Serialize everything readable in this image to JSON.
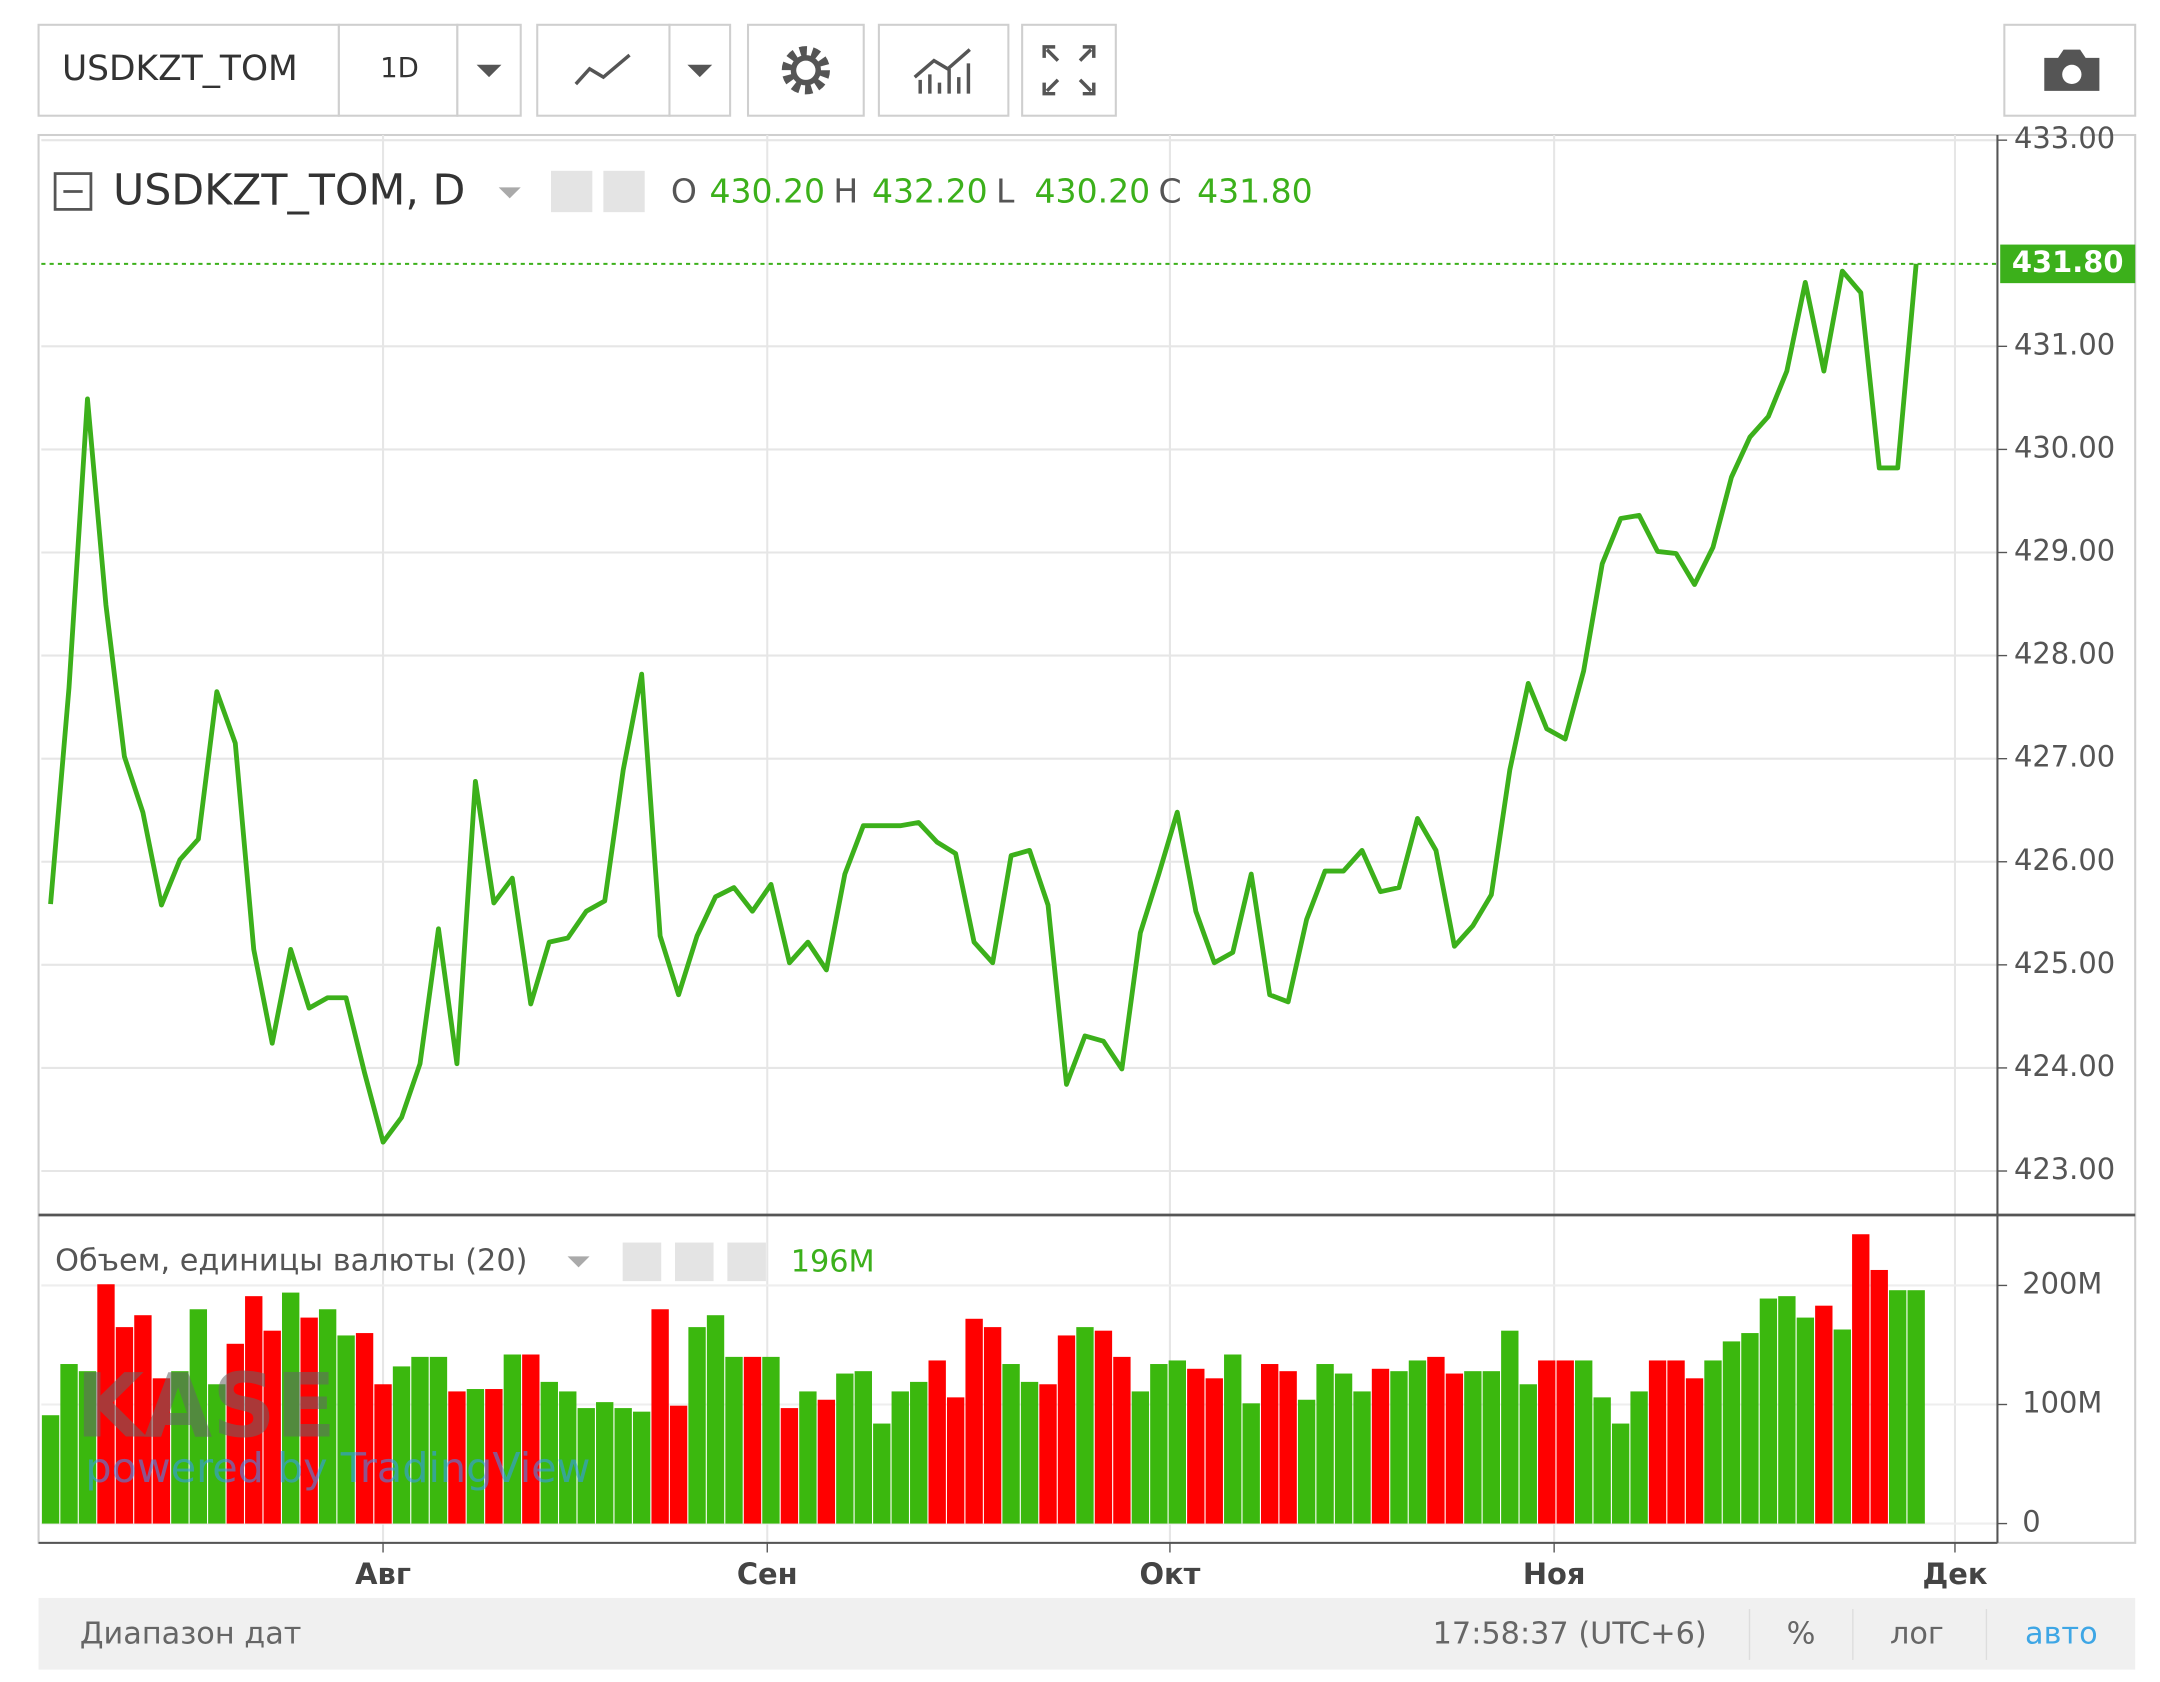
{
  "toolbar": {
    "symbol": "USDKZT_TOM",
    "interval": "1D"
  },
  "chart_data": {
    "type": "line",
    "title": "USDKZT_TOM, D",
    "ohlc": [
      {
        "key": "O",
        "value": "430.20"
      },
      {
        "key": "H",
        "value": "432.20"
      },
      {
        "key": "L",
        "value": "430.20"
      },
      {
        "key": "C",
        "value": "431.80"
      }
    ],
    "color": "#3cb01b",
    "last_label": "431.80",
    "grid": true,
    "values": [
      425.59,
      427.69,
      430.49,
      428.49,
      427.02,
      426.48,
      425.58,
      426.02,
      426.22,
      427.65,
      427.15,
      425.15,
      424.24,
      425.15,
      424.58,
      424.68,
      424.68,
      423.95,
      423.28,
      423.52,
      424.04,
      425.35,
      424.04,
      426.78,
      425.6,
      425.84,
      424.62,
      425.22,
      425.26,
      425.52,
      425.62,
      426.89,
      427.82,
      425.28,
      424.71,
      425.28,
      425.66,
      425.75,
      425.52,
      425.78,
      425.02,
      425.22,
      424.95,
      425.88,
      426.35,
      426.35,
      426.35,
      426.38,
      426.19,
      426.08,
      425.22,
      425.02,
      426.06,
      426.11,
      425.58,
      423.84,
      424.31,
      424.26,
      423.99,
      425.31,
      425.88,
      426.48,
      425.52,
      425.02,
      425.12,
      425.88,
      424.71,
      424.64,
      425.44,
      425.91,
      425.91,
      426.11,
      425.71,
      425.75,
      426.42,
      426.11,
      425.18,
      425.38,
      425.68,
      426.89,
      427.73,
      427.29,
      427.19,
      427.85,
      428.89,
      429.33,
      429.36,
      429.01,
      428.99,
      428.69,
      429.05,
      429.73,
      430.12,
      430.32,
      430.76,
      431.62,
      430.76,
      431.73,
      431.52,
      429.82,
      429.82,
      431.8
    ],
    "ylim": [
      422.6,
      433.05
    ],
    "yticks": [
      {
        "value": 423,
        "label": "423.00"
      },
      {
        "value": 424,
        "label": "424.00"
      },
      {
        "value": 425,
        "label": "425.00"
      },
      {
        "value": 426,
        "label": "426.00"
      },
      {
        "value": 427,
        "label": "427.00"
      },
      {
        "value": 428,
        "label": "428.00"
      },
      {
        "value": 429,
        "label": "429.00"
      },
      {
        "value": 430,
        "label": "430.00"
      },
      {
        "value": 431,
        "label": "431.00"
      },
      {
        "value": 433,
        "label": "433.00"
      }
    ],
    "xlim": [
      -0.5,
      105.4
    ],
    "xticks": [
      {
        "value": 18,
        "label": "Авг"
      },
      {
        "value": 38.8,
        "label": "Сен"
      },
      {
        "value": 60.6,
        "label": "Окт"
      },
      {
        "value": 81.4,
        "label": "Ноя"
      },
      {
        "value": 103.1,
        "label": "Дек"
      }
    ],
    "volume": {
      "title": "Объем, единицы валюты (20)",
      "last_label": "196M",
      "up_color": "#3bb80e",
      "down_color": "#ff0000",
      "values": [
        91,
        134,
        128,
        201,
        165,
        175,
        122,
        128,
        180,
        117,
        151,
        191,
        162,
        194,
        173,
        180,
        158,
        160,
        117,
        132,
        140,
        140,
        111,
        113,
        113,
        142,
        142,
        119,
        111,
        97,
        102,
        97,
        94,
        180,
        99,
        165,
        175,
        140,
        140,
        140,
        97,
        111,
        104,
        126,
        128,
        84,
        111,
        119,
        137,
        106,
        172,
        165,
        134,
        119,
        117,
        158,
        165,
        162,
        140,
        111,
        134,
        137,
        130,
        122,
        142,
        101,
        134,
        128,
        104,
        134,
        126,
        111,
        130,
        128,
        137,
        140,
        126,
        128,
        128,
        162,
        117,
        137,
        137,
        137,
        106,
        84,
        111,
        137,
        137,
        122,
        137,
        153,
        160,
        189,
        191,
        173,
        183,
        163,
        243,
        213,
        196,
        196
      ],
      "ylim": [
        0,
        258
      ],
      "yticks": [
        0,
        {
          "value": 100,
          "label": "100M"
        },
        {
          "value": 200,
          "label": "200M"
        }
      ]
    }
  },
  "watermark": {
    "logo": "KASE",
    "sub": "powered by TradingView"
  },
  "footer": {
    "date_range": "Диапазон дат",
    "time": "17:58:37 (UTC+6)",
    "percent": "%",
    "log": "лог",
    "auto": "авто"
  }
}
